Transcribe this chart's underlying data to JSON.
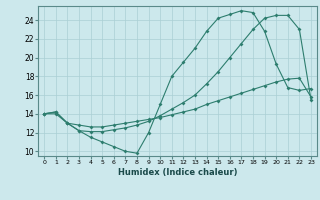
{
  "xlabel": "Humidex (Indice chaleur)",
  "xlim": [
    -0.5,
    23.5
  ],
  "ylim": [
    9.5,
    25.5
  ],
  "yticks": [
    10,
    12,
    14,
    16,
    18,
    20,
    22,
    24
  ],
  "xticks": [
    0,
    1,
    2,
    3,
    4,
    5,
    6,
    7,
    8,
    9,
    10,
    11,
    12,
    13,
    14,
    15,
    16,
    17,
    18,
    19,
    20,
    21,
    22,
    23
  ],
  "bg_color": "#cce8ec",
  "line_color": "#2d7d6e",
  "grid_color": "#aacfd4",
  "line1_x": [
    0,
    1,
    2,
    3,
    4,
    5,
    6,
    7,
    8,
    9,
    10,
    11,
    12,
    13,
    14,
    15,
    16,
    17,
    18,
    19,
    20,
    21,
    22,
    23
  ],
  "line1_y": [
    14,
    14.2,
    13.0,
    12.2,
    11.5,
    11.0,
    10.5,
    10.0,
    9.8,
    12.0,
    15.0,
    18.0,
    19.5,
    21.0,
    22.8,
    24.2,
    24.6,
    25.0,
    24.8,
    22.8,
    19.3,
    16.8,
    16.5,
    16.7
  ],
  "line2_x": [
    0,
    1,
    2,
    3,
    4,
    5,
    6,
    7,
    8,
    9,
    10,
    11,
    12,
    13,
    14,
    15,
    16,
    17,
    18,
    19,
    20,
    21,
    22,
    23
  ],
  "line2_y": [
    14,
    14.2,
    13.0,
    12.2,
    12.1,
    12.1,
    12.3,
    12.5,
    12.8,
    13.2,
    13.8,
    14.5,
    15.2,
    16.0,
    17.2,
    18.5,
    20.0,
    21.5,
    23.0,
    24.2,
    24.5,
    24.5,
    23.0,
    15.5
  ],
  "line3_x": [
    0,
    1,
    2,
    3,
    4,
    5,
    6,
    7,
    8,
    9,
    10,
    11,
    12,
    13,
    14,
    15,
    16,
    17,
    18,
    19,
    20,
    21,
    22,
    23
  ],
  "line3_y": [
    14,
    14.0,
    13.0,
    12.8,
    12.6,
    12.6,
    12.8,
    13.0,
    13.2,
    13.4,
    13.6,
    13.9,
    14.2,
    14.5,
    15.0,
    15.4,
    15.8,
    16.2,
    16.6,
    17.0,
    17.4,
    17.7,
    17.8,
    15.8
  ]
}
